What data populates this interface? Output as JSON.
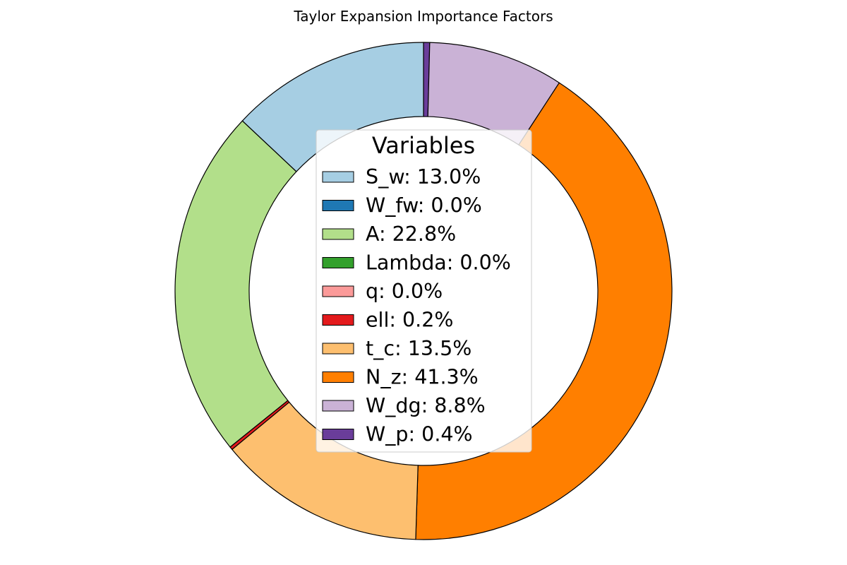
{
  "chart_data": {
    "type": "pie",
    "donut": true,
    "title": "Taylor Expansion Importance Factors",
    "legend_title": "Variables",
    "legend_position": "center",
    "start_angle": "top",
    "direction": "clockwise-from-top, ordered W_p, W_dg, N_z, t_c, ell, q, Lambda, A, W_fw, S_w",
    "series": [
      {
        "name": "S_w",
        "label": "S_w: 13.0%",
        "value": 13.0,
        "color": "#a6cee3"
      },
      {
        "name": "W_fw",
        "label": "W_fw: 0.0%",
        "value": 0.0,
        "color": "#1f78b4"
      },
      {
        "name": "A",
        "label": "A: 22.8%",
        "value": 22.8,
        "color": "#b2df8a"
      },
      {
        "name": "Lambda",
        "label": "Lambda: 0.0%",
        "value": 0.0,
        "color": "#33a02c"
      },
      {
        "name": "q",
        "label": "q: 0.0%",
        "value": 0.0,
        "color": "#fb9a99"
      },
      {
        "name": "ell",
        "label": "ell: 0.2%",
        "value": 0.2,
        "color": "#e31a1c"
      },
      {
        "name": "t_c",
        "label": "t_c: 13.5%",
        "value": 13.5,
        "color": "#fdbf6f"
      },
      {
        "name": "N_z",
        "label": "N_z: 41.3%",
        "value": 41.3,
        "color": "#ff7f00"
      },
      {
        "name": "W_dg",
        "label": "W_dg: 8.8%",
        "value": 8.8,
        "color": "#cab2d6"
      },
      {
        "name": "W_p",
        "label": "W_p: 0.4%",
        "value": 0.4,
        "color": "#6a3d9a"
      }
    ]
  }
}
